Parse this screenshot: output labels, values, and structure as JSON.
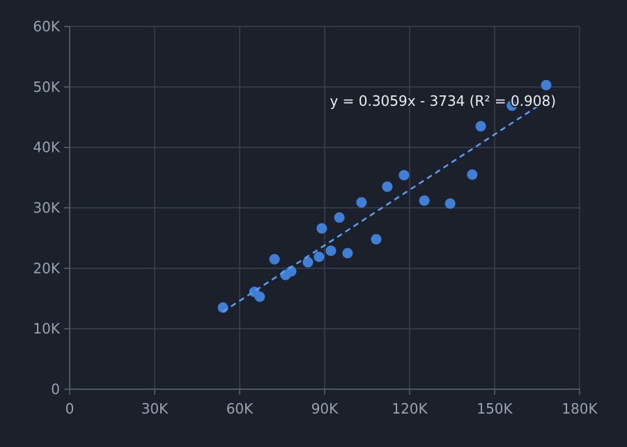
{
  "chart_data": {
    "type": "scatter",
    "x": [
      54100,
      65200,
      67100,
      72300,
      76200,
      78200,
      84100,
      88000,
      89000,
      92200,
      95200,
      98100,
      103000,
      108200,
      112100,
      118000,
      125200,
      134300,
      142100,
      145100,
      156100,
      168200
    ],
    "values": [
      13500,
      16100,
      15300,
      21500,
      18900,
      19500,
      21000,
      21900,
      26600,
      22900,
      28400,
      22500,
      30900,
      24800,
      33500,
      35400,
      31200,
      30700,
      35500,
      43500,
      46900,
      50300
    ],
    "color": "#3f7fd6",
    "trendline": {
      "slope": 0.3059,
      "intercept": -3734,
      "color": "#5b9cf6",
      "label": "y = 0.3059x - 3734 (R² = 0.908)"
    },
    "xlim": [
      0,
      180000
    ],
    "xticks": [
      0,
      {
        "value": 30000,
        "label": "30K"
      },
      {
        "value": 60000,
        "label": "60K"
      },
      {
        "value": 90000,
        "label": "90K"
      },
      {
        "value": 120000,
        "label": "120K"
      },
      {
        "value": 150000,
        "label": "150K"
      },
      {
        "value": 180000,
        "label": "180K"
      }
    ],
    "ylim": [
      0,
      60000
    ],
    "yticks": [
      0,
      {
        "value": 10000,
        "label": "10K"
      },
      {
        "value": 20000,
        "label": "20K"
      },
      {
        "value": 30000,
        "label": "30K"
      },
      {
        "value": 40000,
        "label": "40K"
      },
      {
        "value": 50000,
        "label": "50K"
      },
      {
        "value": 60000,
        "label": "60K"
      }
    ],
    "grid": true
  }
}
